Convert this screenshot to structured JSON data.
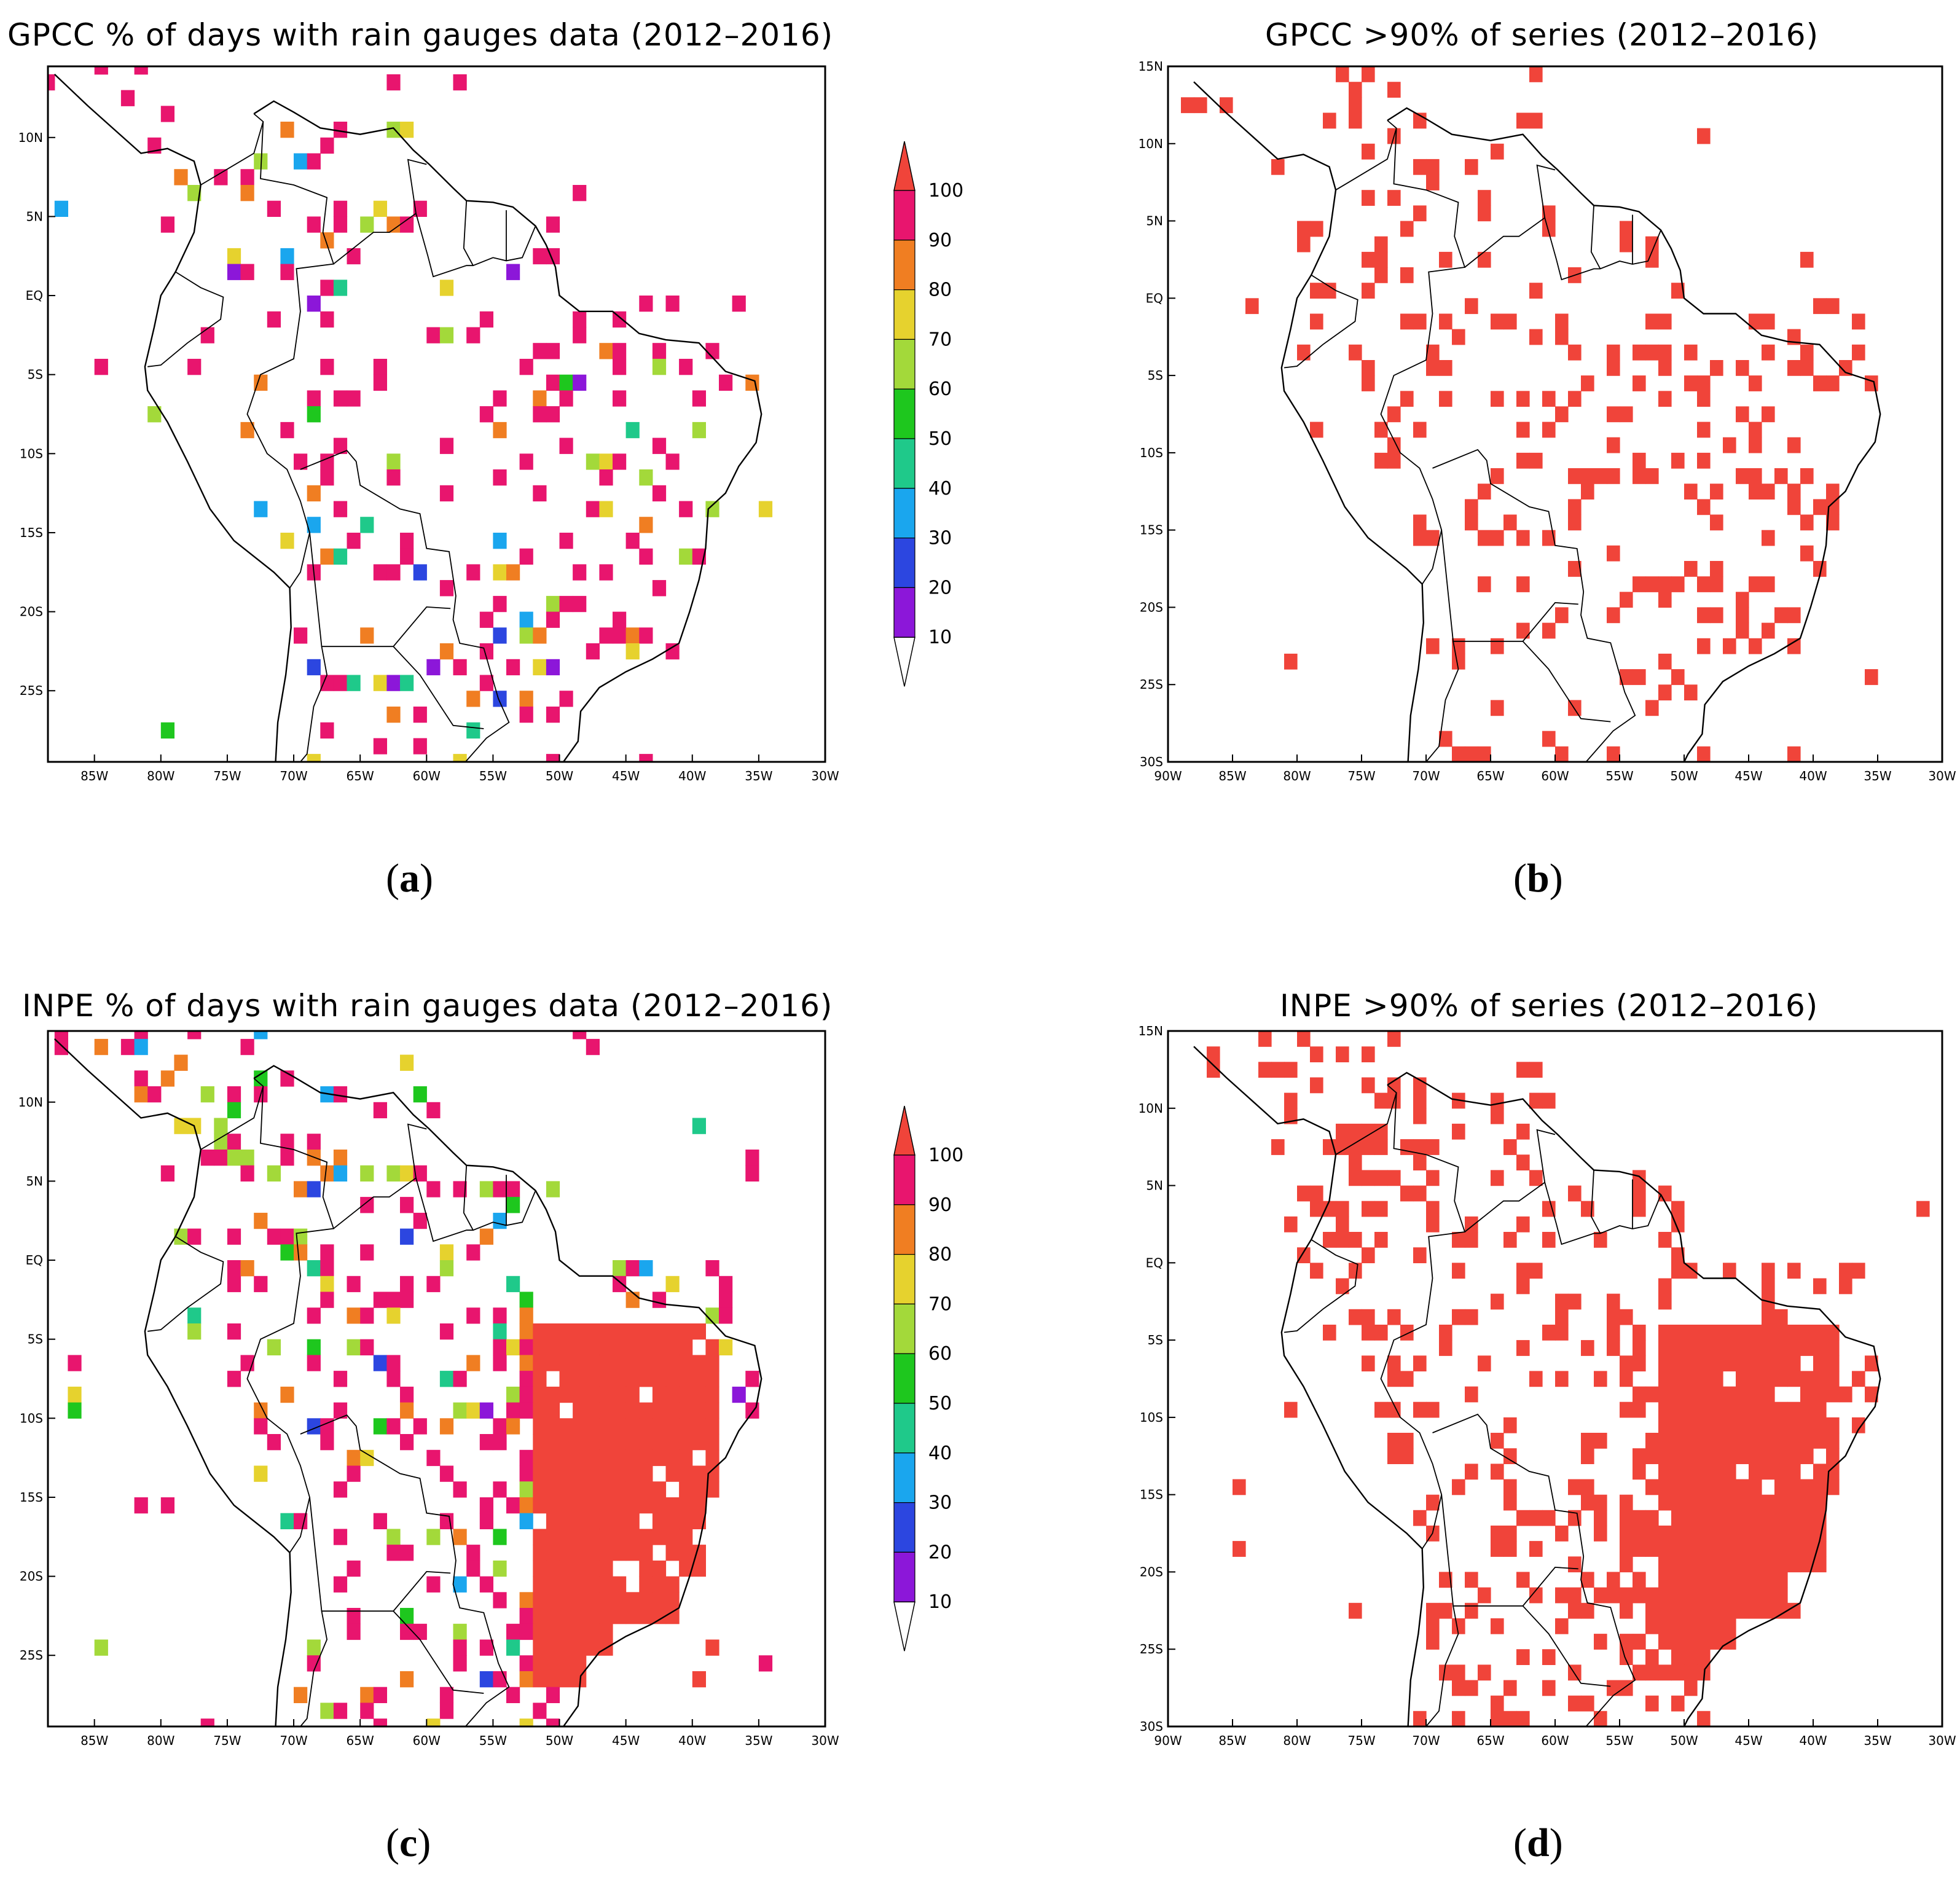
{
  "panels": [
    {
      "id": "a",
      "title": "GPCC % of days with rain gauges data (2012–2016)",
      "caption_letter": "a",
      "axes_variant": "gauges",
      "y_ticks": [
        "10N",
        "5N",
        "EQ",
        "5S",
        "10S",
        "15S",
        "20S",
        "25S"
      ],
      "x_ticks": [
        "85W",
        "80W",
        "75W",
        "70W",
        "65W",
        "60W",
        "55W",
        "50W",
        "45W",
        "40W",
        "35W",
        "30W"
      ],
      "colorbar": true,
      "density": "sparse"
    },
    {
      "id": "b",
      "title": "GPCC >90% of series (2012–2016)",
      "caption_letter": "b",
      "axes_variant": "series",
      "y_ticks": [
        "15N",
        "10N",
        "5N",
        "EQ",
        "5S",
        "10S",
        "15S",
        "20S",
        "25S",
        "30S"
      ],
      "x_ticks": [
        "90W",
        "85W",
        "80W",
        "75W",
        "70W",
        "65W",
        "60W",
        "55W",
        "50W",
        "45W",
        "40W",
        "35W",
        "30W"
      ],
      "colorbar": false,
      "density": "sparse"
    },
    {
      "id": "c",
      "title_prefix": "INPE",
      "title": "% of days with rain gauges data (2012–2016)",
      "caption_letter": "c",
      "axes_variant": "gauges",
      "y_ticks": [
        "10N",
        "5N",
        "EQ",
        "5S",
        "10S",
        "15S",
        "20S",
        "25S"
      ],
      "x_ticks": [
        "85W",
        "80W",
        "75W",
        "70W",
        "65W",
        "60W",
        "55W",
        "50W",
        "45W",
        "40W",
        "35W",
        "30W"
      ],
      "colorbar": true,
      "density": "dense"
    },
    {
      "id": "d",
      "title_prefix": "INPE",
      "title": ">90% of series (2012–2016)",
      "caption_letter": "d",
      "axes_variant": "series",
      "y_ticks": [
        "15N",
        "10N",
        "5N",
        "EQ",
        "5S",
        "10S",
        "15S",
        "20S",
        "25S",
        "30S"
      ],
      "x_ticks": [
        "90W",
        "85W",
        "80W",
        "75W",
        "70W",
        "65W",
        "60W",
        "55W",
        "50W",
        "45W",
        "40W",
        "35W",
        "30W"
      ],
      "colorbar": false,
      "density": "dense"
    }
  ],
  "colorbar": {
    "labels": [
      "100",
      "90",
      "80",
      "70",
      "60",
      "50",
      "40",
      "30",
      "20",
      "10"
    ],
    "colors": [
      "#e8156e",
      "#f07e22",
      "#e6d22e",
      "#a3d93a",
      "#1ec71e",
      "#1fc98a",
      "#1aa6ee",
      "#2c46e0",
      "#8c17d9"
    ],
    "top_arrow_color": "#f0443a"
  },
  "series_color": "#f0443a",
  "map_line_color": "#000000"
}
